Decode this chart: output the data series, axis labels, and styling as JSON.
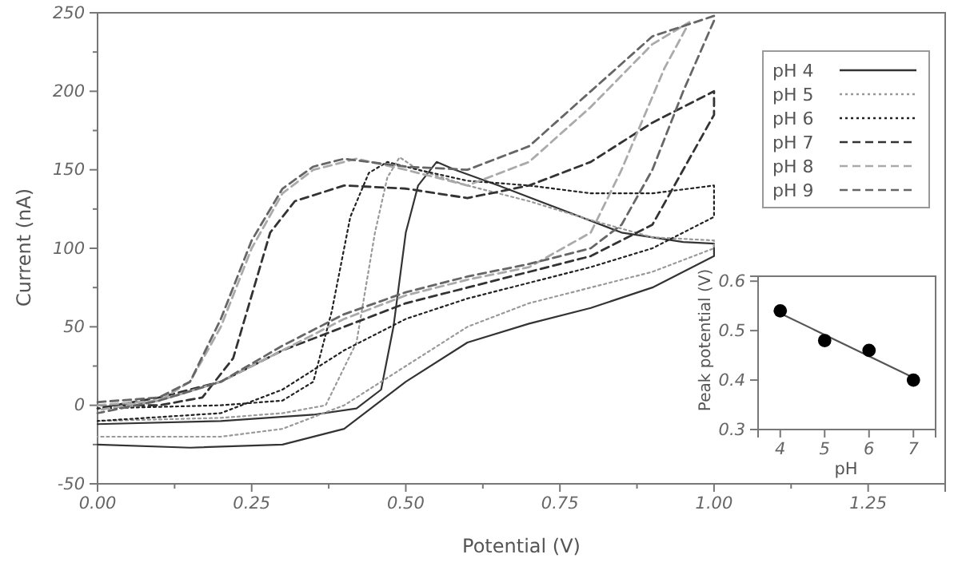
{
  "chart_data": [
    {
      "type": "line",
      "xlabel": "Potential (V)",
      "ylabel": "Current (nA)",
      "xlim": [
        0,
        1.375
      ],
      "ylim": [
        -50,
        250
      ],
      "xticks": [
        {
          "value": 0,
          "label": "0.00"
        },
        {
          "value": 0.125,
          "label": null
        },
        {
          "value": 0.25,
          "label": "0.25"
        },
        {
          "value": 0.375,
          "label": null
        },
        {
          "value": 0.5,
          "label": "0.50"
        },
        {
          "value": 0.625,
          "label": null
        },
        {
          "value": 0.75,
          "label": "0.75"
        },
        {
          "value": 0.875,
          "label": null
        },
        {
          "value": 1,
          "label": "1.00"
        },
        {
          "value": 1.125,
          "label": null
        },
        {
          "value": 1.25,
          "label": "1.25"
        }
      ],
      "yticks": [
        -50,
        {
          "value": -25,
          "label": null
        },
        0,
        {
          "value": 25,
          "label": null
        },
        50,
        {
          "value": 75,
          "label": null
        },
        100,
        {
          "value": 125,
          "label": null
        },
        150,
        {
          "value": 175,
          "label": null
        },
        200,
        {
          "value": 225,
          "label": null
        },
        250
      ],
      "grid": false,
      "legend": "top right",
      "series": [
        {
          "name": "pH 4",
          "color": "#333333",
          "line_style": "solid",
          "x": [
            0,
            0.2,
            0.35,
            0.42,
            0.46,
            0.48,
            0.5,
            0.52,
            0.55,
            0.58,
            0.65,
            0.75,
            0.85,
            0.95,
            1,
            1,
            0.9,
            0.8,
            0.7,
            0.6,
            0.5,
            0.45,
            0.4,
            0.3,
            0.15,
            0
          ],
          "values": [
            -12,
            -10,
            -6,
            -2,
            10,
            50,
            110,
            140,
            155,
            150,
            140,
            125,
            110,
            104,
            103,
            95,
            75,
            62,
            52,
            40,
            15,
            0,
            -15,
            -25,
            -27,
            -25
          ]
        },
        {
          "name": "pH 5",
          "color": "#999999",
          "line_style": "dotted",
          "x": [
            0,
            0.2,
            0.3,
            0.37,
            0.42,
            0.45,
            0.47,
            0.49,
            0.52,
            0.6,
            0.7,
            0.8,
            0.9,
            1,
            1,
            0.9,
            0.8,
            0.7,
            0.6,
            0.5,
            0.4,
            0.3,
            0.2,
            0
          ],
          "values": [
            -10,
            -8,
            -5,
            0,
            40,
            110,
            145,
            158,
            150,
            140,
            130,
            118,
            107,
            105,
            100,
            85,
            75,
            65,
            50,
            25,
            0,
            -15,
            -20,
            -20
          ]
        },
        {
          "name": "pH 6",
          "color": "#222222",
          "line_style": "dotted",
          "x": [
            0,
            0.2,
            0.3,
            0.35,
            0.38,
            0.41,
            0.44,
            0.47,
            0.52,
            0.6,
            0.7,
            0.8,
            0.9,
            1,
            1,
            0.9,
            0.8,
            0.7,
            0.6,
            0.5,
            0.4,
            0.3,
            0.2,
            0
          ],
          "values": [
            -2,
            0,
            3,
            15,
            60,
            120,
            148,
            155,
            150,
            143,
            140,
            135,
            135,
            140,
            120,
            100,
            88,
            78,
            68,
            55,
            35,
            10,
            -5,
            -10
          ]
        },
        {
          "name": "pH 7",
          "color": "#333333",
          "line_style": "dashed",
          "x": [
            0,
            0.1,
            0.17,
            0.22,
            0.25,
            0.28,
            0.32,
            0.4,
            0.5,
            0.6,
            0.7,
            0.8,
            0.9,
            1,
            1,
            0.9,
            0.8,
            0.7,
            0.6,
            0.5,
            0.4,
            0.3,
            0.2,
            0.1,
            0
          ],
          "values": [
            0,
            0,
            5,
            30,
            70,
            110,
            130,
            140,
            138,
            132,
            140,
            155,
            180,
            200,
            185,
            115,
            95,
            85,
            75,
            65,
            50,
            35,
            15,
            5,
            -2
          ]
        },
        {
          "name": "pH 8",
          "color": "#aaaaaa",
          "line_style": "dashed",
          "x": [
            0,
            0.1,
            0.15,
            0.2,
            0.25,
            0.3,
            0.35,
            0.42,
            0.5,
            0.6,
            0.7,
            0.8,
            0.9,
            0.96,
            0.92,
            0.85,
            0.8,
            0.7,
            0.6,
            0.5,
            0.4,
            0.3,
            0.2,
            0.1,
            0
          ],
          "values": [
            0,
            3,
            15,
            50,
            100,
            135,
            150,
            157,
            150,
            140,
            155,
            190,
            230,
            244,
            215,
            150,
            110,
            88,
            80,
            70,
            55,
            35,
            15,
            3,
            -3
          ]
        },
        {
          "name": "pH 9",
          "color": "#666666",
          "line_style": "dashed",
          "x": [
            0,
            0.1,
            0.15,
            0.2,
            0.25,
            0.3,
            0.35,
            0.4,
            0.5,
            0.6,
            0.7,
            0.8,
            0.9,
            1,
            1,
            0.95,
            0.9,
            0.85,
            0.8,
            0.7,
            0.6,
            0.5,
            0.4,
            0.3,
            0.2,
            0.1,
            0
          ],
          "values": [
            2,
            5,
            15,
            55,
            105,
            138,
            152,
            157,
            152,
            150,
            165,
            200,
            235,
            248,
            245,
            200,
            150,
            115,
            100,
            90,
            82,
            72,
            58,
            38,
            15,
            3,
            -5
          ]
        }
      ]
    },
    {
      "type": "scatter",
      "xlabel": "pH",
      "ylabel": "Peak potential (V)",
      "xlim": [
        3.5,
        7.5
      ],
      "ylim": [
        0.3,
        0.61
      ],
      "xticks": [
        4,
        5,
        6,
        7
      ],
      "yticks": [
        0.3,
        0.4,
        0.5,
        0.6
      ],
      "grid": false,
      "series": [
        {
          "color": "#000000",
          "marker": "circle",
          "x": [
            4,
            5,
            6,
            7
          ],
          "values": [
            0.54,
            0.48,
            0.46,
            0.4
          ]
        },
        {
          "type": "line",
          "marker": "none",
          "color": "#555555",
          "x": [
            4,
            7
          ],
          "values": [
            0.535,
            0.405
          ]
        }
      ]
    }
  ]
}
